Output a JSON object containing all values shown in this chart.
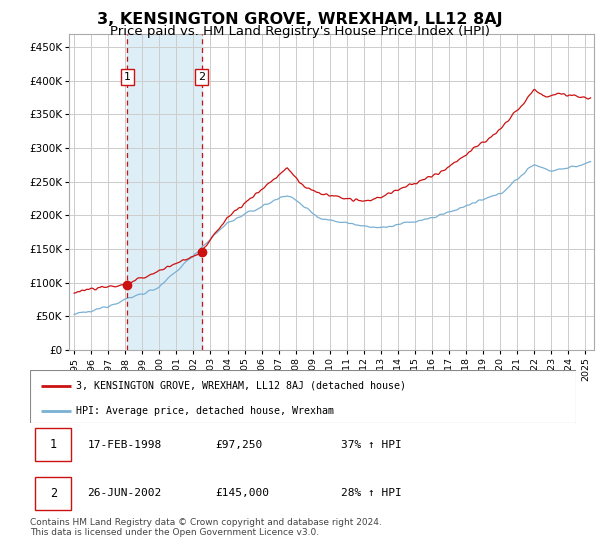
{
  "title": "3, KENSINGTON GROVE, WREXHAM, LL12 8AJ",
  "subtitle": "Price paid vs. HM Land Registry's House Price Index (HPI)",
  "title_fontsize": 11.5,
  "subtitle_fontsize": 9.5,
  "yticks": [
    0,
    50000,
    100000,
    150000,
    200000,
    250000,
    300000,
    350000,
    400000,
    450000
  ],
  "ytick_labels": [
    "£0",
    "£50K",
    "£100K",
    "£150K",
    "£200K",
    "£250K",
    "£300K",
    "£350K",
    "£400K",
    "£450K"
  ],
  "xlim_start": 1994.7,
  "xlim_end": 2025.5,
  "ylim_min": 0,
  "ylim_max": 470000,
  "grid_color": "#cccccc",
  "bg_color": "#ffffff",
  "plot_bg_color": "#ffffff",
  "sale1_date": 1998.12,
  "sale1_price": 97250,
  "sale1_label": "1",
  "sale2_date": 2002.48,
  "sale2_price": 145000,
  "sale2_label": "2",
  "hpi_line_color": "#7ab0d4",
  "price_line_color": "#cc1111",
  "sale_marker_color": "#cc1111",
  "vline_color": "#cc1111",
  "vline_style": "--",
  "highlight_color": "#ddeef7",
  "legend_house_label": "3, KENSINGTON GROVE, WREXHAM, LL12 8AJ (detached house)",
  "legend_hpi_label": "HPI: Average price, detached house, Wrexham",
  "table_row1": [
    "1",
    "17-FEB-1998",
    "£97,250",
    "37% ↑ HPI"
  ],
  "table_row2": [
    "2",
    "26-JUN-2002",
    "£145,000",
    "28% ↑ HPI"
  ],
  "footnote": "Contains HM Land Registry data © Crown copyright and database right 2024.\nThis data is licensed under the Open Government Licence v3.0.",
  "xtick_years": [
    1995,
    1996,
    1997,
    1998,
    1999,
    2000,
    2001,
    2002,
    2003,
    2004,
    2005,
    2006,
    2007,
    2008,
    2009,
    2010,
    2011,
    2012,
    2013,
    2014,
    2015,
    2016,
    2017,
    2018,
    2019,
    2020,
    2021,
    2022,
    2023,
    2024,
    2025
  ]
}
